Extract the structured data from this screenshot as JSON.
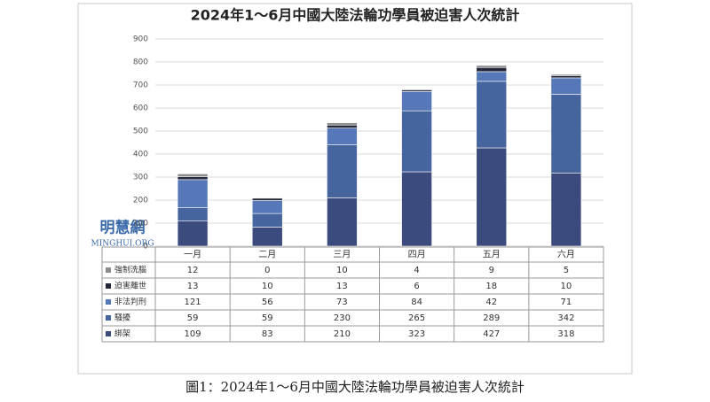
{
  "chart_data": {
    "type": "stacked-bar",
    "title": "2024年1～6月中國大陸法輪功學員被迫害人次統計",
    "categories": [
      "一月",
      "二月",
      "三月",
      "四月",
      "五月",
      "六月"
    ],
    "series": [
      {
        "name": "綁架",
        "color": "#3b4b7e",
        "values": [
          109,
          83,
          210,
          323,
          427,
          318
        ]
      },
      {
        "name": "騷擾",
        "color": "#46659f",
        "values": [
          59,
          59,
          230,
          265,
          289,
          342
        ]
      },
      {
        "name": "非法判刑",
        "color": "#5677b8",
        "values": [
          121,
          56,
          73,
          84,
          42,
          71
        ]
      },
      {
        "name": "迫害離世",
        "color": "#23293a",
        "values": [
          13,
          10,
          13,
          6,
          18,
          10
        ]
      },
      {
        "name": "強制洗腦",
        "color": "#8c8c8c",
        "values": [
          12,
          0,
          10,
          4,
          9,
          5
        ]
      }
    ],
    "ylim": [
      0,
      900
    ],
    "yticks": [
      0,
      100,
      200,
      300,
      400,
      500,
      600,
      700,
      800,
      900
    ],
    "grid": true
  },
  "watermark": {
    "name": "明慧網",
    "url": "MINGHUI.ORG"
  },
  "caption": "圖1：2024年1～6月中國大陸法輪功學員被迫害人次統計"
}
